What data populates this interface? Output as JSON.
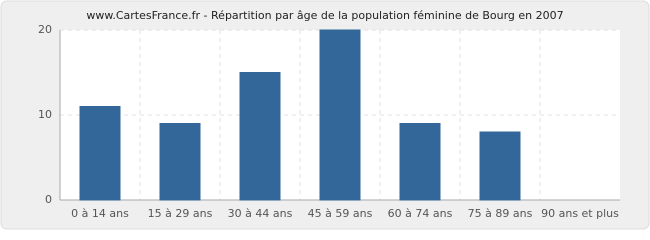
{
  "chart_data": {
    "type": "bar",
    "title": "www.CartesFrance.fr - Répartition par âge de la population féminine de Bourg en 2007",
    "categories": [
      "0 à 14 ans",
      "15 à 29 ans",
      "30 à 44 ans",
      "45 à 59 ans",
      "60 à 74 ans",
      "75 à 89 ans",
      "90 ans et plus"
    ],
    "values": [
      11,
      9,
      15,
      20,
      9,
      8,
      0
    ],
    "color": "#336699",
    "ylim": [
      0,
      20
    ],
    "yticks": [
      0,
      10,
      20
    ],
    "grid": true
  }
}
